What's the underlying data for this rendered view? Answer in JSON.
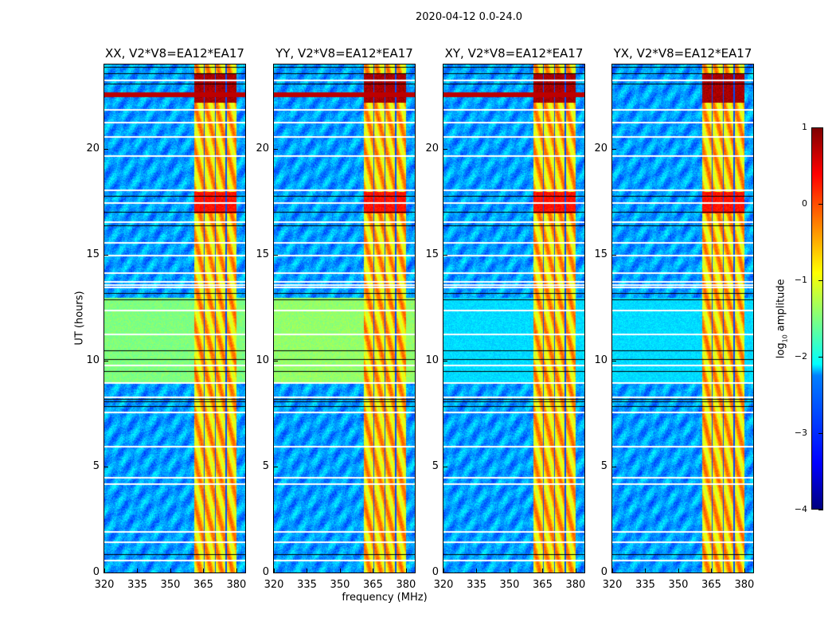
{
  "figure_title": "2020-04-12 0.0-24.0",
  "chart_data": [
    {
      "type": "heatmap",
      "title": "XX, V2*V8=EA12*EA17",
      "xlabel": "frequency (MHz)",
      "ylabel": "UT (hours)",
      "xlim": [
        320,
        384
      ],
      "ylim": [
        0,
        24
      ],
      "x_ticks": [
        "320",
        "335",
        "350",
        "365",
        "380"
      ],
      "y_ticks": [
        "0",
        "5",
        "10",
        "15",
        "20"
      ],
      "green_region_hours": [
        9,
        13
      ],
      "green_level": -1.5
    },
    {
      "type": "heatmap",
      "title": "YY, V2*V8=EA12*EA17",
      "xlabel": "frequency (MHz)",
      "ylabel": "",
      "xlim": [
        320,
        384
      ],
      "ylim": [
        0,
        24
      ],
      "x_ticks": [
        "320",
        "335",
        "350",
        "365",
        "380"
      ],
      "y_ticks": [
        "0",
        "5",
        "10",
        "15",
        "20"
      ],
      "green_region_hours": [
        9,
        13
      ],
      "green_level": -1.4
    },
    {
      "type": "heatmap",
      "title": "XY, V2*V8=EA12*EA17",
      "xlabel": "",
      "ylabel": "",
      "xlim": [
        320,
        384
      ],
      "ylim": [
        0,
        24
      ],
      "x_ticks": [
        "320",
        "335",
        "350",
        "365",
        "380"
      ],
      "y_ticks": [
        "0",
        "5",
        "10",
        "15",
        "20"
      ],
      "green_region_hours": [
        9,
        13
      ],
      "green_level": -2.3
    },
    {
      "type": "heatmap",
      "title": "YX, V2*V8=EA12*EA17",
      "xlabel": "",
      "ylabel": "",
      "xlim": [
        320,
        384
      ],
      "ylim": [
        0,
        24
      ],
      "x_ticks": [
        "320",
        "335",
        "350",
        "365",
        "380"
      ],
      "y_ticks": [
        "0",
        "5",
        "10",
        "15",
        "20"
      ],
      "green_region_hours": [
        9,
        13
      ],
      "green_level": -2.3
    }
  ],
  "common": {
    "band_mhz": [
      360.5,
      380
    ],
    "band_gaps_mhz": [
      365.2,
      370.2,
      375.2
    ],
    "background_level": -2.6,
    "band_level": -0.6,
    "rfi_events": [
      {
        "hours": [
          22.2,
          23.6
        ],
        "level": 0.8
      },
      {
        "hours": [
          17.0,
          18.0
        ],
        "level": 0.3
      }
    ],
    "rfi_line_hours": 22.6,
    "flagged_hours": [
      0.6,
      1.45,
      1.95,
      4.2,
      4.5,
      6.0,
      7.6,
      8.3,
      9.0,
      9.8,
      11.3,
      12.4,
      13.5,
      13.62,
      13.75,
      14.2,
      15.0,
      15.6,
      16.6,
      17.5,
      18.1,
      19.7,
      20.6,
      21.3,
      21.9,
      23.3
    ],
    "dark_line_hours": [
      0.85,
      7.85,
      8.1,
      8.2,
      9.5,
      10.1,
      10.5,
      12.9,
      13.2,
      16.4,
      17.05,
      17.8,
      23.1,
      23.6,
      23.9
    ]
  },
  "colorbar": {
    "label_main": "log",
    "label_sub": "10",
    "label_rest": " amplitude",
    "range": [
      -4,
      1
    ],
    "ticks": [
      "1",
      "0",
      "−1",
      "−2",
      "−3",
      "−4"
    ],
    "tick_values": [
      1,
      0,
      -1,
      -2,
      -3,
      -4
    ]
  },
  "ylabel": "UT (hours)",
  "xlabel": "frequency (MHz)"
}
